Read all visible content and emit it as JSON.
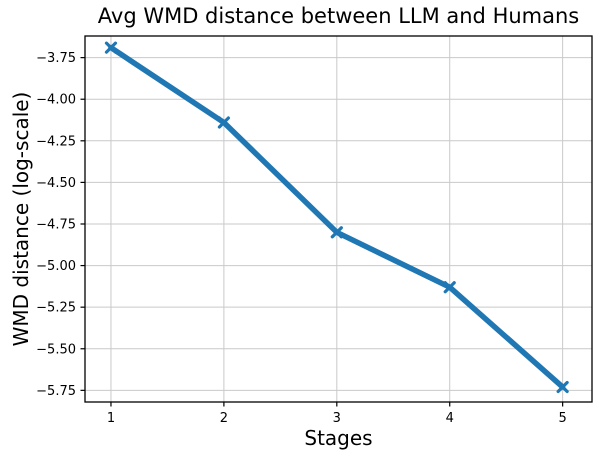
{
  "figure": {
    "background": "#ffffff",
    "text_color": "#000000"
  },
  "chart_data": {
    "type": "line",
    "title": "Avg WMD distance between LLM and Humans",
    "xlabel": "Stages",
    "ylabel": "WMD distance (log-scale)",
    "x": [
      1,
      2,
      3,
      4,
      5
    ],
    "series": [
      {
        "name": "Avg WMD distance",
        "values": [
          -3.69,
          -4.14,
          -4.8,
          -5.13,
          -5.73
        ],
        "color": "#1f77b4",
        "linewidth": 5.5,
        "marker": "x"
      }
    ],
    "xlim": [
      0.77,
      5.26
    ],
    "ylim": [
      -5.82,
      -3.62
    ],
    "xticks": [
      {
        "value": 1,
        "label": "1"
      },
      {
        "value": 2,
        "label": "2"
      },
      {
        "value": 3,
        "label": "3"
      },
      {
        "value": 4,
        "label": "4"
      },
      {
        "value": 5,
        "label": "5"
      }
    ],
    "yticks": [
      {
        "value": -3.75,
        "label": "−3.75"
      },
      {
        "value": -4.0,
        "label": "−4.00"
      },
      {
        "value": -4.25,
        "label": "−4.25"
      },
      {
        "value": -4.5,
        "label": "−4.50"
      },
      {
        "value": -4.75,
        "label": "−4.75"
      },
      {
        "value": -5.0,
        "label": "−5.00"
      },
      {
        "value": -5.25,
        "label": "−5.25"
      },
      {
        "value": -5.5,
        "label": "−5.50"
      },
      {
        "value": -5.75,
        "label": "−5.75"
      }
    ],
    "grid": true,
    "grid_color": "#c9c9c9",
    "spine_color": "#000000",
    "legend": "none"
  }
}
